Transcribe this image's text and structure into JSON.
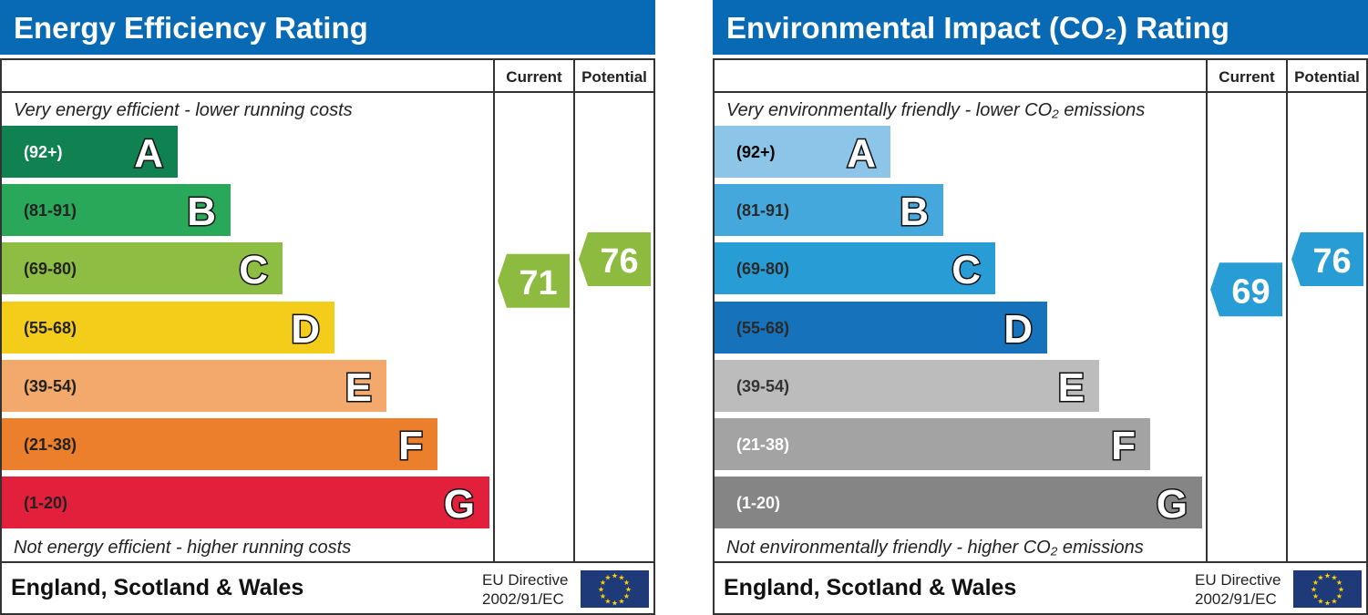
{
  "chart_data": [
    {
      "type": "bar",
      "title": "Energy Efficiency Rating",
      "columns": [
        "Current",
        "Potential"
      ],
      "top_note": "Very energy efficient - lower running costs",
      "bottom_note": "Not energy efficient - higher running costs",
      "footer_country": "England, Scotland & Wales",
      "footer_directive": [
        "EU Directive",
        "2002/91/EC"
      ],
      "bands": [
        {
          "letter": "A",
          "range": "(92+)",
          "color": "#108151",
          "text_color": "#ffffff"
        },
        {
          "letter": "B",
          "range": "(81-91)",
          "color": "#2aa85a",
          "text_color": "#222222"
        },
        {
          "letter": "C",
          "range": "(69-80)",
          "color": "#8dbd43",
          "text_color": "#222222"
        },
        {
          "letter": "D",
          "range": "(55-68)",
          "color": "#f4cd1a",
          "text_color": "#222222"
        },
        {
          "letter": "E",
          "range": "(39-54)",
          "color": "#f2a96b",
          "text_color": "#222222"
        },
        {
          "letter": "F",
          "range": "(21-38)",
          "color": "#ec7f2b",
          "text_color": "#222222"
        },
        {
          "letter": "G",
          "range": "(1-20)",
          "color": "#e2203c",
          "text_color": "#222222"
        }
      ],
      "current": {
        "value": 71,
        "band": "C",
        "color": "#8dbb3f"
      },
      "potential": {
        "value": 76,
        "band": "C",
        "color": "#8dbb3f"
      },
      "header_color": "#086ab4"
    },
    {
      "type": "bar",
      "title": "Environmental Impact (CO₂) Rating",
      "columns": [
        "Current",
        "Potential"
      ],
      "top_note": "Very environmentally friendly - lower CO₂ emissions",
      "bottom_note": "Not environmentally friendly - higher CO₂ emissions",
      "footer_country": "England, Scotland & Wales",
      "footer_directive": [
        "EU Directive",
        "2002/91/EC"
      ],
      "bands": [
        {
          "letter": "A",
          "range": "(92+)",
          "color": "#8cc5e8",
          "text_color": "#000000"
        },
        {
          "letter": "B",
          "range": "(81-91)",
          "color": "#44a8dc",
          "text_color": "#2a2a2a"
        },
        {
          "letter": "C",
          "range": "(69-80)",
          "color": "#279cd5",
          "text_color": "#2a2a2a"
        },
        {
          "letter": "D",
          "range": "(55-68)",
          "color": "#1672ba",
          "text_color": "#2a2a2a"
        },
        {
          "letter": "E",
          "range": "(39-54)",
          "color": "#bcbcbc",
          "text_color": "#333333"
        },
        {
          "letter": "F",
          "range": "(21-38)",
          "color": "#a3a3a3",
          "text_color": "#ffffff"
        },
        {
          "letter": "G",
          "range": "(1-20)",
          "color": "#858585",
          "text_color": "#ffffff"
        }
      ],
      "current": {
        "value": 69,
        "band": "C",
        "color": "#279cd5"
      },
      "potential": {
        "value": 76,
        "band": "C",
        "color": "#279cd5"
      },
      "header_color": "#086ab4"
    }
  ]
}
